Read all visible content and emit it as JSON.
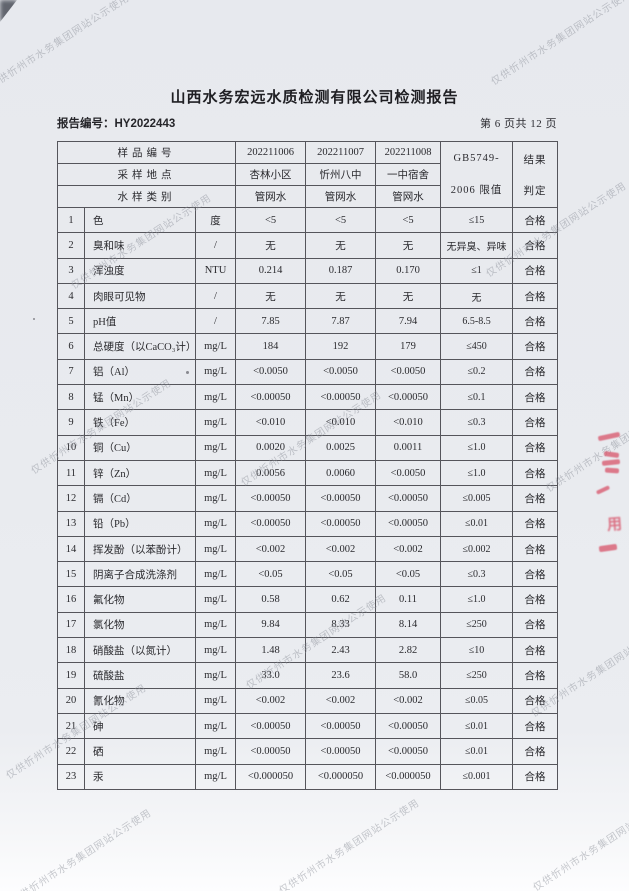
{
  "page": {
    "title": "山西水务宏远水质检测有限公司检测报告",
    "report_no_label": "报告编号：",
    "report_no": "HY2022443",
    "page_info": "第 6 页共 12 页"
  },
  "watermark": {
    "text": "仅供忻州市水务集团网站公示使用"
  },
  "stamp": {
    "color": "#d95d72",
    "glyph": "用"
  },
  "table": {
    "header": {
      "sample_no_label": "样品编号",
      "location_label": "采样地点",
      "type_label": "水样类别",
      "sample_nos": [
        "202211006",
        "202211007",
        "202211008"
      ],
      "locations": [
        "杏林小区",
        "忻州八中",
        "一中宿舍"
      ],
      "types": [
        "管网水",
        "管网水",
        "管网水"
      ],
      "limit_header_line1": "GB5749-",
      "limit_header_line2": "2006 限值",
      "result_header_line1": "结果",
      "result_header_line2": "判定"
    },
    "rows": [
      {
        "no": "1",
        "item": "色",
        "unit": "度",
        "v1": "<5",
        "v2": "<5",
        "v3": "<5",
        "limit": "≤15",
        "result": "合格"
      },
      {
        "no": "2",
        "item": "臭和味",
        "unit": "/",
        "v1": "无",
        "v2": "无",
        "v3": "无",
        "limit": "无异臭、异味",
        "result": "合格"
      },
      {
        "no": "3",
        "item": "浑浊度",
        "unit": "NTU",
        "v1": "0.214",
        "v2": "0.187",
        "v3": "0.170",
        "limit": "≤1",
        "result": "合格"
      },
      {
        "no": "4",
        "item": "肉眼可见物",
        "unit": "/",
        "v1": "无",
        "v2": "无",
        "v3": "无",
        "limit": "无",
        "result": "合格"
      },
      {
        "no": "5",
        "item": "pH值",
        "unit": "/",
        "v1": "7.85",
        "v2": "7.87",
        "v3": "7.94",
        "limit": "6.5-8.5",
        "result": "合格"
      },
      {
        "no": "6",
        "item": "总硬度（以CaCO₃计）",
        "unit": "mg/L",
        "v1": "184",
        "v2": "192",
        "v3": "179",
        "limit": "≤450",
        "result": "合格"
      },
      {
        "no": "7",
        "item": "铝（Al）",
        "unit": "mg/L",
        "v1": "<0.0050",
        "v2": "<0.0050",
        "v3": "<0.0050",
        "limit": "≤0.2",
        "result": "合格"
      },
      {
        "no": "8",
        "item": "锰（Mn）",
        "unit": "mg/L",
        "v1": "<0.00050",
        "v2": "<0.00050",
        "v3": "<0.00050",
        "limit": "≤0.1",
        "result": "合格"
      },
      {
        "no": "9",
        "item": "铁（Fe）",
        "unit": "mg/L",
        "v1": "<0.010",
        "v2": "<0.010",
        "v3": "<0.010",
        "limit": "≤0.3",
        "result": "合格"
      },
      {
        "no": "10",
        "item": "铜（Cu）",
        "unit": "mg/L",
        "v1": "0.0020",
        "v2": "0.0025",
        "v3": "0.0011",
        "limit": "≤1.0",
        "result": "合格"
      },
      {
        "no": "11",
        "item": "锌（Zn）",
        "unit": "mg/L",
        "v1": "0.0056",
        "v2": "0.0060",
        "v3": "<0.0050",
        "limit": "≤1.0",
        "result": "合格"
      },
      {
        "no": "12",
        "item": "镉（Cd）",
        "unit": "mg/L",
        "v1": "<0.00050",
        "v2": "<0.00050",
        "v3": "<0.00050",
        "limit": "≤0.005",
        "result": "合格"
      },
      {
        "no": "13",
        "item": "铅（Pb）",
        "unit": "mg/L",
        "v1": "<0.00050",
        "v2": "<0.00050",
        "v3": "<0.00050",
        "limit": "≤0.01",
        "result": "合格"
      },
      {
        "no": "14",
        "item": "挥发酚（以苯酚计）",
        "unit": "mg/L",
        "v1": "<0.002",
        "v2": "<0.002",
        "v3": "<0.002",
        "limit": "≤0.002",
        "result": "合格"
      },
      {
        "no": "15",
        "item": "阴离子合成洗涤剂",
        "unit": "mg/L",
        "v1": "<0.05",
        "v2": "<0.05",
        "v3": "<0.05",
        "limit": "≤0.3",
        "result": "合格"
      },
      {
        "no": "16",
        "item": "氟化物",
        "unit": "mg/L",
        "v1": "0.58",
        "v2": "0.62",
        "v3": "0.11",
        "limit": "≤1.0",
        "result": "合格"
      },
      {
        "no": "17",
        "item": "氯化物",
        "unit": "mg/L",
        "v1": "9.84",
        "v2": "8.33",
        "v3": "8.14",
        "limit": "≤250",
        "result": "合格"
      },
      {
        "no": "18",
        "item": "硝酸盐（以氮计）",
        "unit": "mg/L",
        "v1": "1.48",
        "v2": "2.43",
        "v3": "2.82",
        "limit": "≤10",
        "result": "合格"
      },
      {
        "no": "19",
        "item": "硫酸盐",
        "unit": "mg/L",
        "v1": "33.0",
        "v2": "23.6",
        "v3": "58.0",
        "limit": "≤250",
        "result": "合格"
      },
      {
        "no": "20",
        "item": "氰化物",
        "unit": "mg/L",
        "v1": "<0.002",
        "v2": "<0.002",
        "v3": "<0.002",
        "limit": "≤0.05",
        "result": "合格"
      },
      {
        "no": "21",
        "item": "砷",
        "unit": "mg/L",
        "v1": "<0.00050",
        "v2": "<0.00050",
        "v3": "<0.00050",
        "limit": "≤0.01",
        "result": "合格"
      },
      {
        "no": "22",
        "item": "硒",
        "unit": "mg/L",
        "v1": "<0.00050",
        "v2": "<0.00050",
        "v3": "<0.00050",
        "limit": "≤0.01",
        "result": "合格"
      },
      {
        "no": "23",
        "item": "汞",
        "unit": "mg/L",
        "v1": "<0.000050",
        "v2": "<0.000050",
        "v3": "<0.000050",
        "limit": "≤0.001",
        "result": "合格"
      }
    ]
  }
}
